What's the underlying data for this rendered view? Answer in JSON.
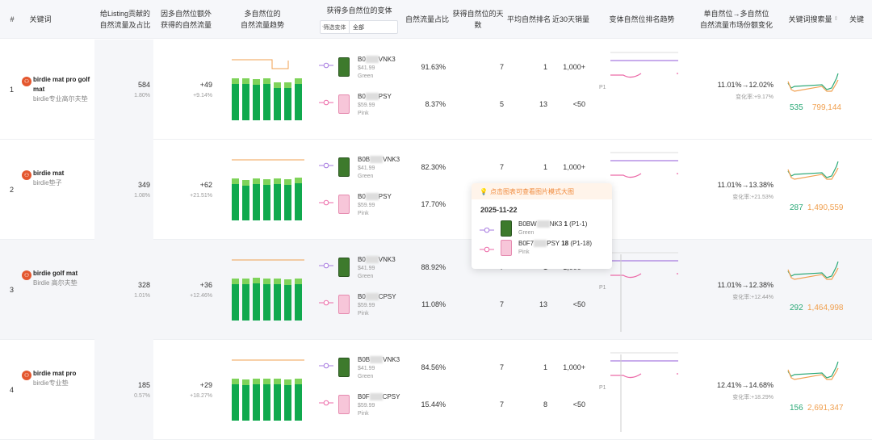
{
  "header": {
    "index": "#",
    "keyword": "关键词",
    "listing_traffic": [
      "给Listing贡献的",
      "自然流量及占比"
    ],
    "extra_traffic": [
      "因多自然位额外",
      "获得的自然流量"
    ],
    "trend": [
      "多自然位的",
      "自然流量趋势"
    ],
    "variants": "获得多自然位的变体",
    "filter_label": "筛选变体",
    "filter_value": "全部",
    "share": "自然流量占比",
    "days": "获得自然位的天数",
    "avg_rank": "平均自然排名",
    "sales30": "近30天销量",
    "variant_trend": "变体自然位排名趋势",
    "market": [
      "单自然位→多自然位",
      "自然流量市场份额变化"
    ],
    "search_volume": "关键词搜索量",
    "last": "关键"
  },
  "rows": [
    {
      "index": "1",
      "keyword": "birdie mat pro golf mat",
      "keyword_cn": "birdie专业高尔夫垫",
      "traffic": "584",
      "traffic_pct": "1.80%",
      "extra": "+49",
      "extra_pct": "+9.14%",
      "bars": [
        0.9,
        0.9,
        0.88,
        0.9,
        0.8,
        0.8,
        0.9
      ],
      "variants": [
        {
          "asin_a": "B0",
          "asin_b": "VNK3",
          "price": "$41.99",
          "color": "Green",
          "share": "91.63%",
          "days": "7",
          "rank": "1",
          "sales": "1,000+"
        },
        {
          "asin_a": "B0",
          "asin_b": "PSY",
          "price": "$59.99",
          "color": "Pink",
          "share": "8.37%",
          "days": "5",
          "rank": "13",
          "sales": "<50"
        }
      ],
      "rank_label": "P1",
      "market": "11.01%→12.02%",
      "change": "变化率:+9.17%",
      "sv_left": "535",
      "sv_right": "799,144"
    },
    {
      "index": "2",
      "keyword": "birdie mat",
      "keyword_cn": "birdie垫子",
      "traffic": "349",
      "traffic_pct": "1.08%",
      "extra": "+62",
      "extra_pct": "+21.51%",
      "bars": [
        0.9,
        0.85,
        0.9,
        0.88,
        0.9,
        0.88,
        0.92
      ],
      "variants": [
        {
          "asin_a": "B0B",
          "asin_b": "VNK3",
          "price": "$41.99",
          "color": "Green",
          "share": "82.30%",
          "days": "7",
          "rank": "1",
          "sales": "1,000+"
        },
        {
          "asin_a": "B0",
          "asin_b": "PSY",
          "price": "$59.99",
          "color": "Pink",
          "share": "17.70%",
          "days": "",
          "rank": "",
          "sales": ""
        }
      ],
      "rank_label": "",
      "market": "11.01%→13.38%",
      "change": "变化率:+21.53%",
      "sv_left": "287",
      "sv_right": "1,490,559"
    },
    {
      "index": "3",
      "keyword": "birdie golf mat",
      "keyword_cn": "Birdie 高尔夫垫",
      "traffic": "328",
      "traffic_pct": "1.01%",
      "extra": "+36",
      "extra_pct": "+12.46%",
      "bars": [
        0.9,
        0.9,
        0.92,
        0.9,
        0.9,
        0.88,
        0.9
      ],
      "variants": [
        {
          "asin_a": "B0",
          "asin_b": "VNK3",
          "price": "$41.99",
          "color": "Green",
          "share": "88.92%",
          "days": "7",
          "rank": "1",
          "sales": "1,000+"
        },
        {
          "asin_a": "B0",
          "asin_b": "CPSY",
          "price": "$59.99",
          "color": "Pink",
          "share": "11.08%",
          "days": "7",
          "rank": "13",
          "sales": "<50"
        }
      ],
      "rank_label": "P1",
      "market": "11.01%→12.38%",
      "change": "变化率:+12.44%",
      "sv_left": "292",
      "sv_right": "1,464,998"
    },
    {
      "index": "4",
      "keyword": "birdie mat pro",
      "keyword_cn": "birdie专业垫",
      "traffic": "185",
      "traffic_pct": "0.57%",
      "extra": "+29",
      "extra_pct": "+18.27%",
      "bars": [
        0.9,
        0.88,
        0.9,
        0.9,
        0.9,
        0.88,
        0.9
      ],
      "variants": [
        {
          "asin_a": "B0B",
          "asin_b": "VNK3",
          "price": "$41.99",
          "color": "Green",
          "share": "84.56%",
          "days": "7",
          "rank": "1",
          "sales": "1,000+"
        },
        {
          "asin_a": "B0F",
          "asin_b": "CPSY",
          "price": "$59.99",
          "color": "Pink",
          "share": "15.44%",
          "days": "7",
          "rank": "8",
          "sales": "<50"
        }
      ],
      "rank_label": "P1",
      "market": "12.41%→14.68%",
      "change": "变化率:+18.29%",
      "sv_left": "156",
      "sv_right": "2,691,347"
    }
  ],
  "tooltip": {
    "hint": "点击图表可查看图片模式大图",
    "date": "2025-11-22",
    "items": [
      {
        "asin_a": "B0BW",
        "asin_b": "NK3",
        "rank": "1",
        "range": "(P1-1)",
        "color": "Green"
      },
      {
        "asin_a": "B0F7",
        "asin_b": "PSY",
        "rank": "18",
        "range": "(P1-18)",
        "color": "Pink"
      }
    ]
  },
  "colors": {
    "green": "#10a94e",
    "light_green": "#7fd35a",
    "orange": "#f0a050",
    "purple": "#a77be0",
    "pink": "#ec6aa8",
    "search_green": "#2aa876"
  }
}
